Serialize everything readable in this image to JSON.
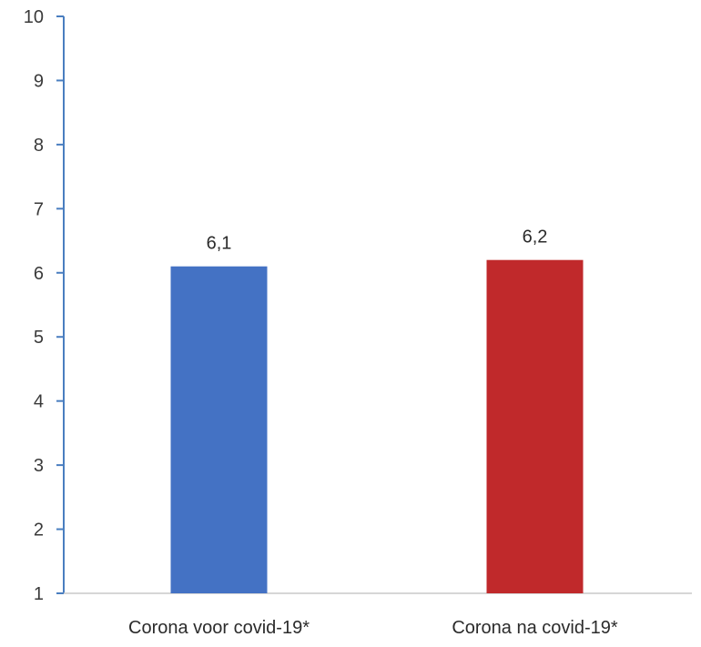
{
  "chart_data": {
    "type": "bar",
    "categories": [
      "Corona voor covid-19*",
      "Corona na covid-19*"
    ],
    "values": [
      6.1,
      6.2
    ],
    "data_labels": [
      "6,1",
      "6,2"
    ],
    "bar_colors": [
      "#4472c4",
      "#c0292b"
    ],
    "y_ticks": [
      "1",
      "2",
      "3",
      "4",
      "5",
      "6",
      "7",
      "8",
      "9",
      "10"
    ],
    "ylim": [
      1,
      10
    ],
    "grid": false,
    "axis_color": "#4a7ec0"
  }
}
